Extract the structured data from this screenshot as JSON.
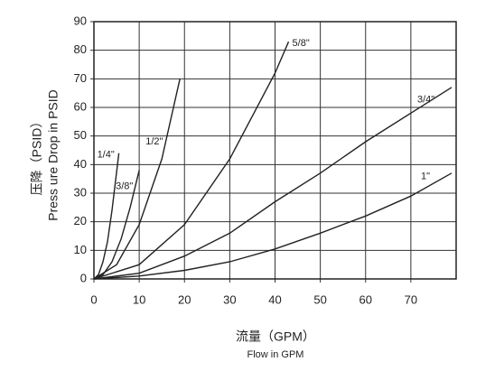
{
  "chart_data": {
    "type": "line",
    "y_label": [
      "压降（PSID）",
      "Press ure Drop in PSID"
    ],
    "x_label": [
      "流量（GPM）",
      "Flow in GPM"
    ],
    "xlim": [
      0,
      80
    ],
    "xticks": [
      0,
      10,
      20,
      30,
      40,
      50,
      60,
      70
    ],
    "ylim": [
      0,
      90
    ],
    "yticks": [
      0,
      10,
      20,
      30,
      40,
      50,
      60,
      70,
      80,
      90
    ],
    "grid": true,
    "series": [
      {
        "name": "1/4\"",
        "color": "#222222",
        "x": [
          0,
          1,
          2,
          3,
          4,
          5.5
        ],
        "values": [
          0,
          1.5,
          6,
          13,
          24,
          44
        ]
      },
      {
        "name": "3/8\"",
        "color": "#222222",
        "x": [
          0,
          2,
          4,
          6,
          8,
          10
        ],
        "values": [
          0,
          1.5,
          6,
          14,
          25,
          38
        ]
      },
      {
        "name": "1/2\"",
        "color": "#222222",
        "x": [
          0,
          5,
          10,
          15,
          19
        ],
        "values": [
          0,
          5,
          19,
          42,
          70
        ]
      },
      {
        "name": "5/8\"",
        "color": "#222222",
        "x": [
          0,
          10,
          20,
          30,
          40,
          43
        ],
        "values": [
          0,
          5,
          19,
          42,
          72,
          83
        ]
      },
      {
        "name": "3/4\"",
        "color": "#222222",
        "x": [
          0,
          10,
          20,
          30,
          40,
          50,
          60,
          70,
          79
        ],
        "values": [
          0,
          2,
          8,
          16,
          27,
          37,
          48,
          58,
          67
        ]
      },
      {
        "name": "1\"",
        "color": "#222222",
        "x": [
          0,
          10,
          20,
          30,
          40,
          50,
          60,
          70,
          79
        ],
        "values": [
          0,
          1,
          3,
          6,
          10.5,
          16,
          22,
          29,
          37
        ]
      }
    ]
  }
}
